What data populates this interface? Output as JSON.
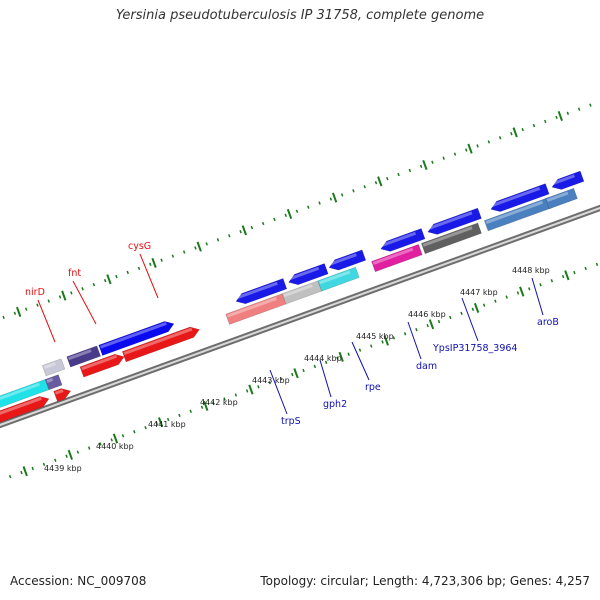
{
  "title": "Yersinia pseudotuberculosis IP 31758, complete genome",
  "footer": {
    "accession": "Accession: NC_009708",
    "summary": "Topology: circular; Length: 4,723,306 bp; Genes: 4,257"
  },
  "colors": {
    "backbone": "#8a8a8a",
    "ticks": "#1a7a1a",
    "label_red": "#e01010",
    "label_blue": "#1010b0"
  },
  "scale_labels": [
    {
      "text": "4439 kbp",
      "kbp": 4439
    },
    {
      "text": "4440 kbp",
      "kbp": 4440
    },
    {
      "text": "4441 kbp",
      "kbp": 4441
    },
    {
      "text": "4442 kbp",
      "kbp": 4442
    },
    {
      "text": "4443 kbp",
      "kbp": 4443
    },
    {
      "text": "4444 kbp",
      "kbp": 4444
    },
    {
      "text": "4445 kbp",
      "kbp": 4445
    },
    {
      "text": "4446 kbp",
      "kbp": 4446
    },
    {
      "text": "4447 kbp",
      "kbp": 4447
    },
    {
      "text": "4448 kbp",
      "kbp": 4448
    }
  ],
  "gene_labels": [
    {
      "text": "nirD",
      "color": "red"
    },
    {
      "text": "fnt",
      "color": "red"
    },
    {
      "text": "cysG",
      "color": "red"
    },
    {
      "text": "trpS",
      "color": "blue"
    },
    {
      "text": "gph2",
      "color": "blue"
    },
    {
      "text": "rpe",
      "color": "blue"
    },
    {
      "text": "dam",
      "color": "blue"
    },
    {
      "text": "YpsIP31758_3964",
      "color": "blue"
    },
    {
      "text": "aroB",
      "color": "blue"
    }
  ]
}
